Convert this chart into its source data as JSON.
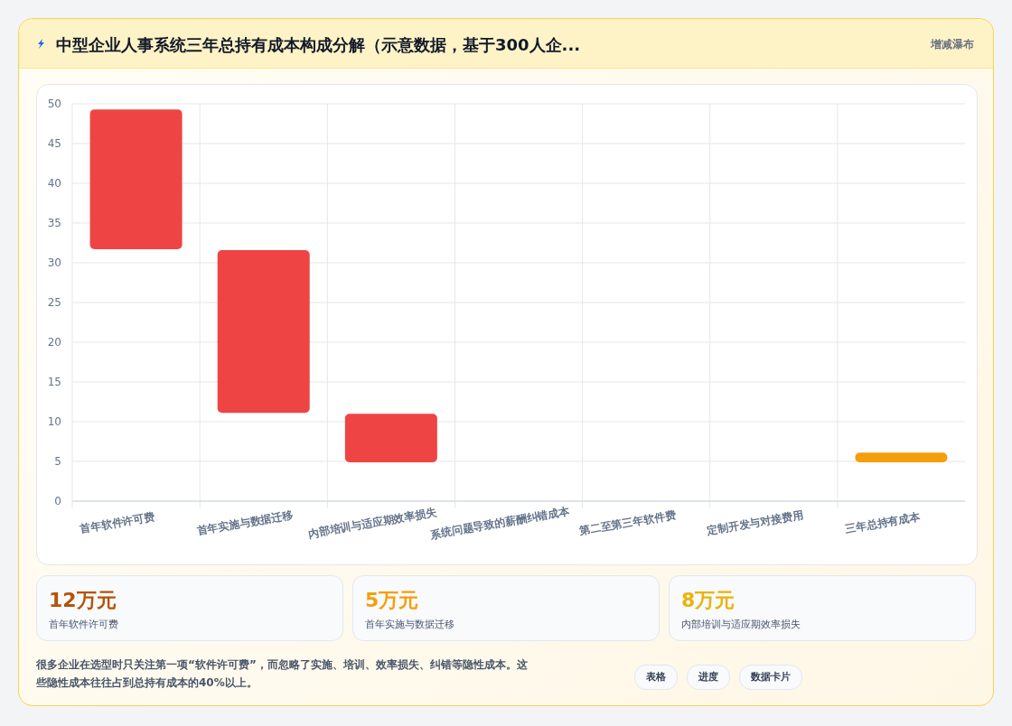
{
  "chart_data": [
    {
      "type": "bar",
      "title": "中型企业人事系统三年总持有成本构成分解（示意数据，基于300人企...",
      "categories": [
        "首年软件许可费",
        "首年实施与数据迁移",
        "内部培训与适应期效率损失",
        "系统问题导致的薪酬纠错成本",
        "第二至第三年软件费",
        "定制开发与对接费用",
        "三年总持有成本"
      ],
      "values": [
        17.6,
        20.5,
        6.1,
        null,
        null,
        null,
        1.2
      ],
      "base": [
        31.7,
        11.1,
        4.9,
        null,
        null,
        null,
        4.9
      ],
      "colors": [
        "#ef4444",
        "#ef4444",
        "#ef4444",
        null,
        null,
        null,
        "#f59e0b"
      ],
      "ylim": [
        0,
        50
      ],
      "yticks": [
        0,
        5,
        10,
        15,
        20,
        25,
        30,
        35,
        40,
        45,
        50
      ],
      "grid": true,
      "annotations": [
        "增减瀑布"
      ]
    },
    {
      "type": "other",
      "annotations": [
        "12万元",
        "首年软件许可费",
        "5万元",
        "首年实施与数据迁移",
        "8万元",
        "内部培训与适应期效率损失",
        "很多企业在选型时只关注第一项“软件许可费”，而忽略了实施、培训、效率损失、纠错等隐性成本。这些隐性成本往往占到总持有成本的40%以上。",
        "表格",
        "进度",
        "数据卡片"
      ]
    }
  ]
}
